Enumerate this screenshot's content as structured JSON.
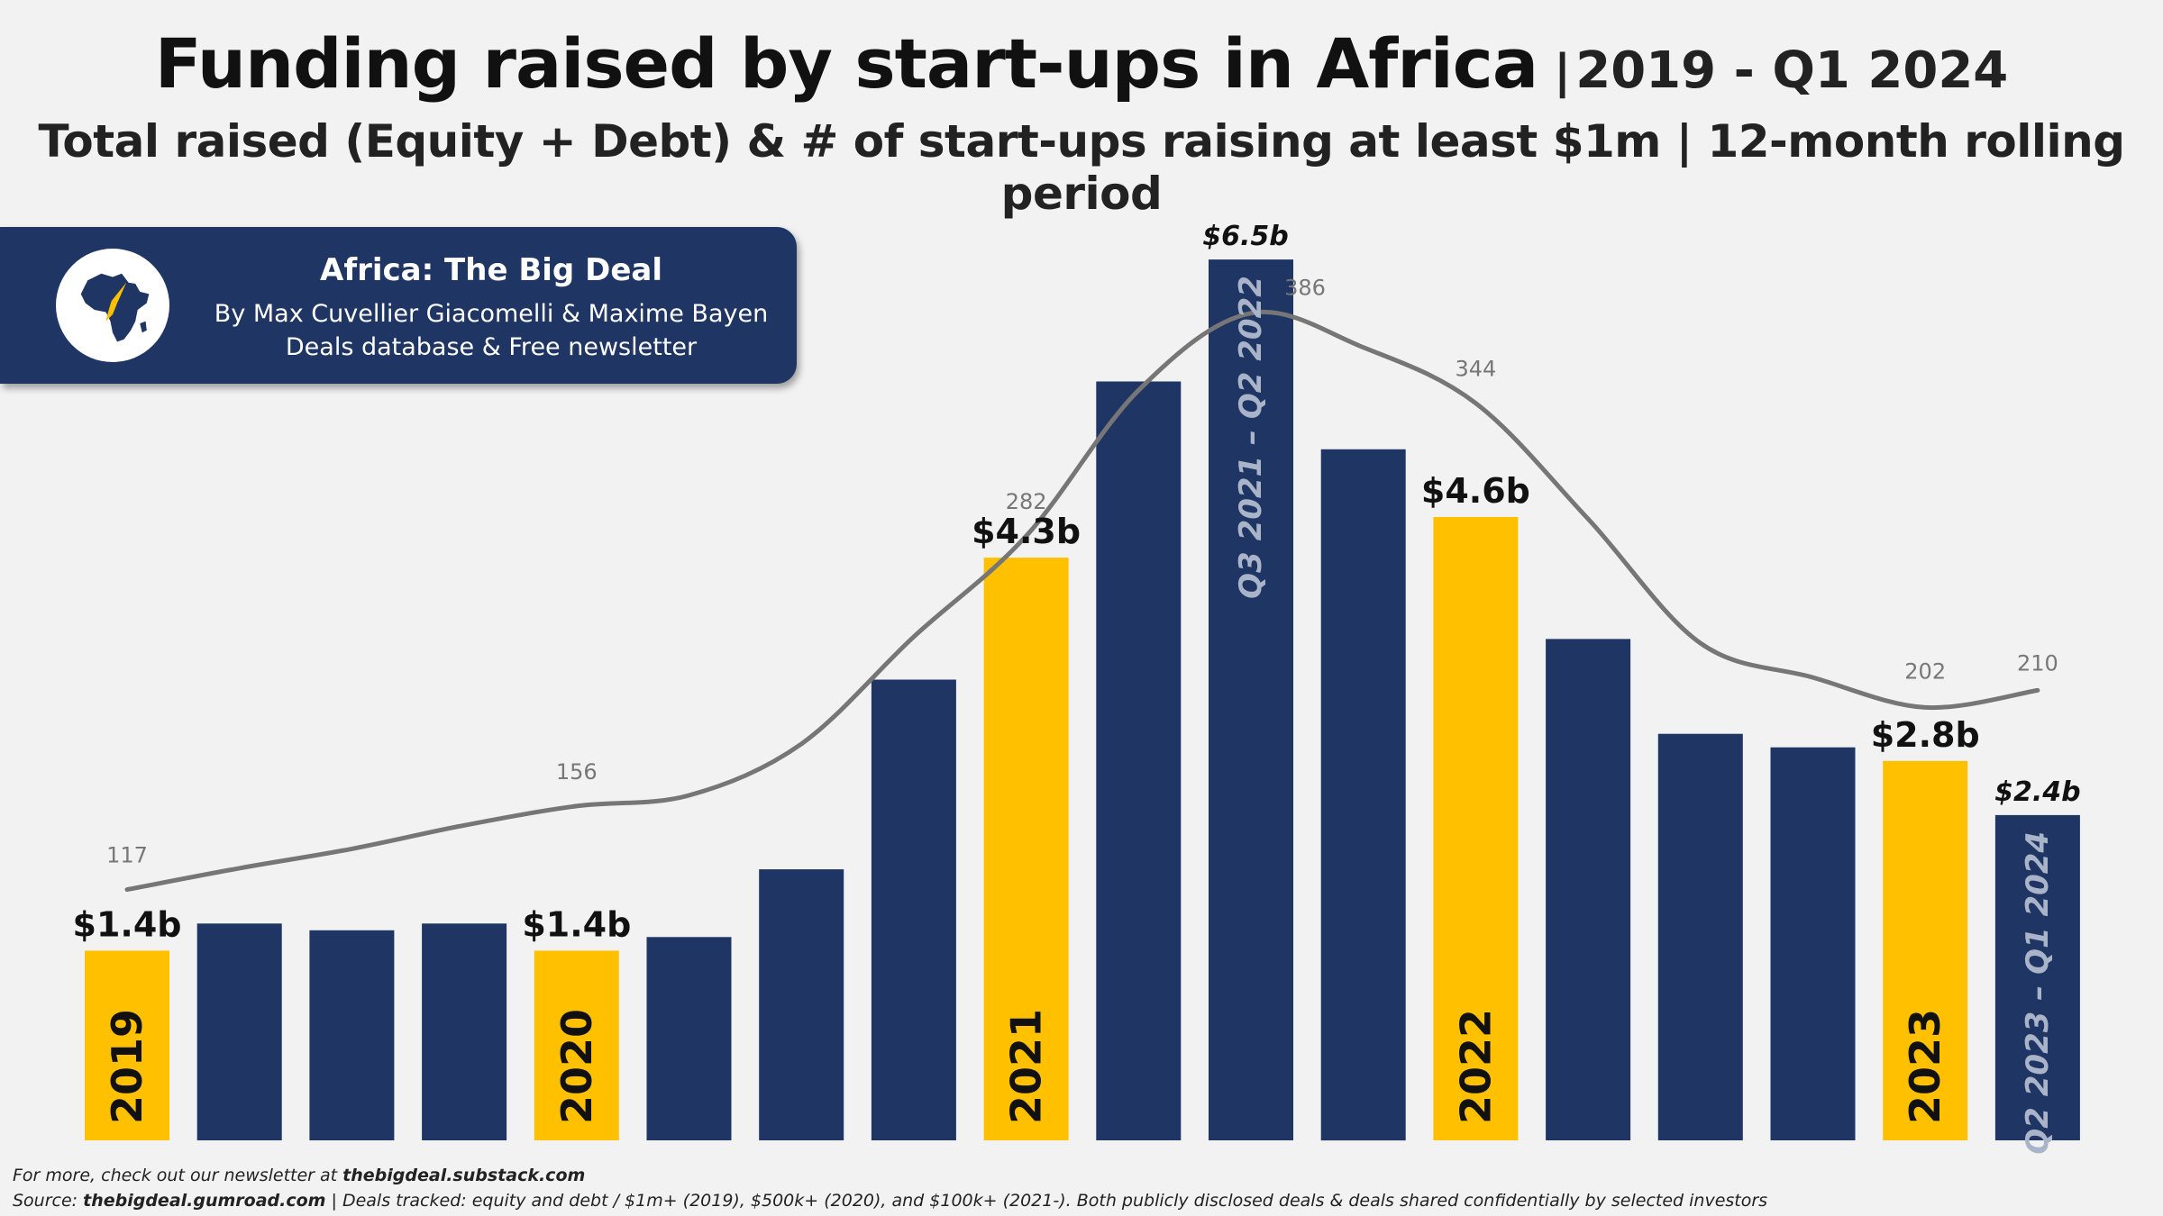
{
  "title": {
    "main": "Funding raised by start-ups in Africa",
    "separator": "|",
    "range": "2019 - Q1 2024"
  },
  "subtitle": "Total raised (Equity + Debt) & # of start-ups raising at least $1m | 12-month rolling period",
  "banner": {
    "title": "Africa: The Big Deal",
    "authors": "By Max Cuvellier Giacomelli & Maxime Bayen",
    "tagline": "Deals database & Free newsletter",
    "logo_icon": "africa-rocket-logo-icon"
  },
  "footer": {
    "line1_prefix": "For more, check out our newsletter at ",
    "line1_link": "thebigdeal.substack.com",
    "line2_label": "Source: ",
    "line2_link": "thebigdeal.gumroad.com",
    "line2_rest": " | Deals tracked: equity and debt / $1m+ (2019), $500k+ (2020), and $100k+ (2021-). Both publicly disclosed deals & deals shared confidentially by selected investors"
  },
  "colors": {
    "navy": "#1f3564",
    "yellow": "#ffc000",
    "line": "#767676",
    "line_label": "#777777",
    "background": "#f2f2f2"
  },
  "chart_data": {
    "type": "bar",
    "series": [
      {
        "values": [
          1.4,
          1.6,
          1.55,
          1.6,
          1.4,
          1.5,
          2.0,
          3.4,
          4.3,
          5.6,
          6.5,
          5.1,
          4.6,
          3.7,
          3.0,
          2.9,
          2.8,
          2.4
        ],
        "highlight": [
          true,
          false,
          false,
          false,
          true,
          false,
          false,
          false,
          true,
          false,
          false,
          false,
          true,
          false,
          false,
          false,
          true,
          false
        ],
        "value_labels": [
          "$1.4b",
          "",
          "",
          "",
          "$1.4b",
          "",
          "",
          "",
          "$4.3b",
          "",
          "$6.5b",
          "",
          "$4.6b",
          "",
          "",
          "",
          "$2.8b",
          "$2.4b"
        ],
        "bar_texts": [
          "2019",
          "",
          "",
          "",
          "2020",
          "",
          "",
          "",
          "2021",
          "",
          "Q3 2021 – Q2 2022",
          "",
          "2022",
          "",
          "",
          "",
          "2023",
          "Q2 2023 – Q1 2024"
        ]
      },
      {
        "values": [
          117,
          127,
          136,
          147,
          156,
          161,
          185,
          235,
          282,
          350,
          386,
          370,
          344,
          290,
          232,
          216,
          202,
          210
        ],
        "point_labels": [
          "117",
          "",
          "",
          "",
          "156",
          "",
          "",
          "",
          "282",
          "",
          "386",
          "",
          "344",
          "",
          "",
          "",
          "202",
          "210"
        ]
      }
    ],
    "ylim": [
      0,
      6.8
    ],
    "ylim_right": [
      0,
      430
    ],
    "grid": false,
    "legend": "none"
  }
}
